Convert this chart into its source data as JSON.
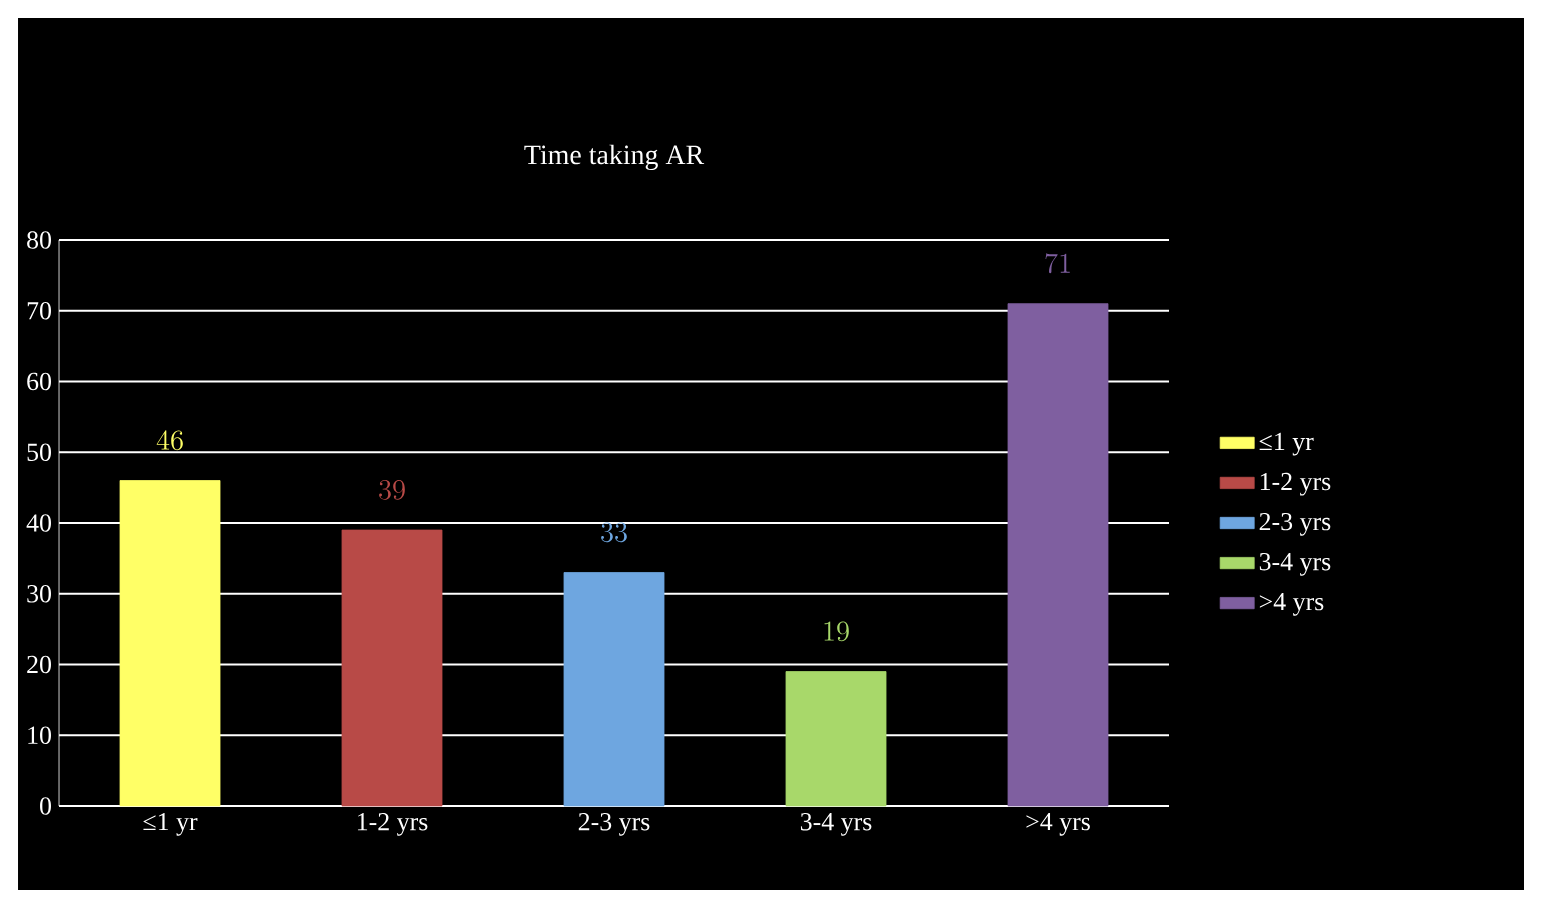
{
  "chart_data": {
    "type": "bar",
    "title": "Time taking AR",
    "categories": [
      "≤1 yr",
      "1-2 yrs",
      "2-3 yrs",
      "3-4 yrs",
      ">4 yrs"
    ],
    "series": [
      {
        "name": "≤1 yr",
        "color": "#ffff66",
        "values": [
          46,
          null,
          null,
          null,
          null
        ]
      },
      {
        "name": "1-2 yrs",
        "color": "#b84a47",
        "values": [
          null,
          39,
          null,
          null,
          null
        ]
      },
      {
        "name": "2-3 yrs",
        "color": "#6ea6e0",
        "values": [
          null,
          null,
          33,
          null,
          null
        ]
      },
      {
        "name": "3-4 yrs",
        "color": "#a8d86a",
        "values": [
          null,
          null,
          null,
          19,
          null
        ]
      },
      {
        "name": ">4 yrs",
        "color": "#7f5fa0",
        "values": [
          null,
          null,
          null,
          null,
          71
        ]
      }
    ],
    "ylim": [
      0,
      80
    ],
    "yticks": [
      0,
      10,
      20,
      30,
      40,
      50,
      60,
      70,
      80
    ],
    "grid": "y",
    "legend": "right",
    "data_labels": true
  }
}
